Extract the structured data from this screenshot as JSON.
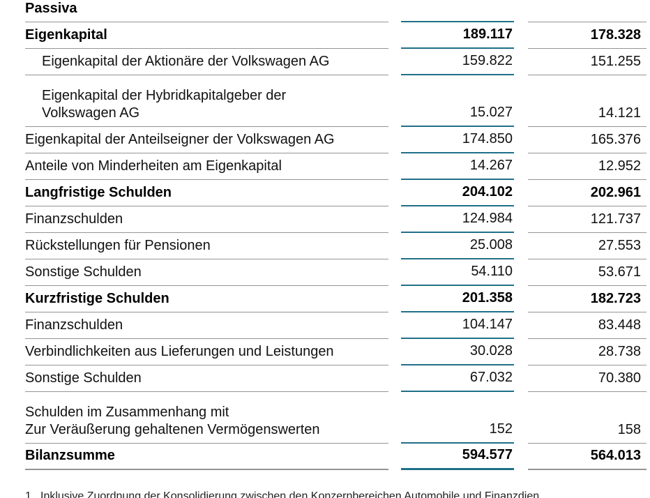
{
  "table": {
    "section_title": "Passiva",
    "rows": [
      {
        "lines": [
          "Eigenkapital"
        ],
        "col1": "189.117",
        "col2": "178.328",
        "section": true
      },
      {
        "lines": [
          "Eigenkapital der Aktionäre der Volkswagen AG"
        ],
        "col1": "159.822",
        "col2": "151.255",
        "indent": true
      },
      {
        "lines": [
          "Eigenkapital der Hybridkapitalgeber der",
          "Volkswagen AG"
        ],
        "col1": "15.027",
        "col2": "14.121",
        "indent": true
      },
      {
        "lines": [
          "Eigenkapital der Anteilseigner der Volkswagen AG"
        ],
        "col1": "174.850",
        "col2": "165.376"
      },
      {
        "lines": [
          "Anteile von Minderheiten am Eigenkapital"
        ],
        "col1": "14.267",
        "col2": "12.952"
      },
      {
        "lines": [
          "Langfristige Schulden"
        ],
        "col1": "204.102",
        "col2": "202.961",
        "section": true
      },
      {
        "lines": [
          "Finanzschulden"
        ],
        "col1": "124.984",
        "col2": "121.737"
      },
      {
        "lines": [
          "Rückstellungen für Pensionen"
        ],
        "col1": "25.008",
        "col2": "27.553"
      },
      {
        "lines": [
          "Sonstige Schulden"
        ],
        "col1": "54.110",
        "col2": "53.671"
      },
      {
        "lines": [
          "Kurzfristige Schulden"
        ],
        "col1": "201.358",
        "col2": "182.723",
        "section": true
      },
      {
        "lines": [
          "Finanzschulden"
        ],
        "col1": "104.147",
        "col2": "83.448"
      },
      {
        "lines": [
          "Verbindlichkeiten aus Lieferungen und Leistungen"
        ],
        "col1": "30.028",
        "col2": "28.738"
      },
      {
        "lines": [
          "Sonstige Schulden"
        ],
        "col1": "67.032",
        "col2": "70.380"
      },
      {
        "lines": [
          "Schulden im Zusammenhang mit",
          "Zur Veräußerung gehaltenen Vermögenswerten"
        ],
        "col1": "152",
        "col2": "158"
      },
      {
        "lines": [
          "Bilanzsumme"
        ],
        "col1": "594.577",
        "col2": "564.013",
        "section": true,
        "total": true
      }
    ],
    "footnote": {
      "marker": "1",
      "text": "Inklusive Zuordnung der Konsolidierung zwischen den Konzernbereichen Automobile und Finanzdien"
    }
  },
  "colors": {
    "current_column_rule": "#1f7089",
    "default_rule": "#949494"
  }
}
